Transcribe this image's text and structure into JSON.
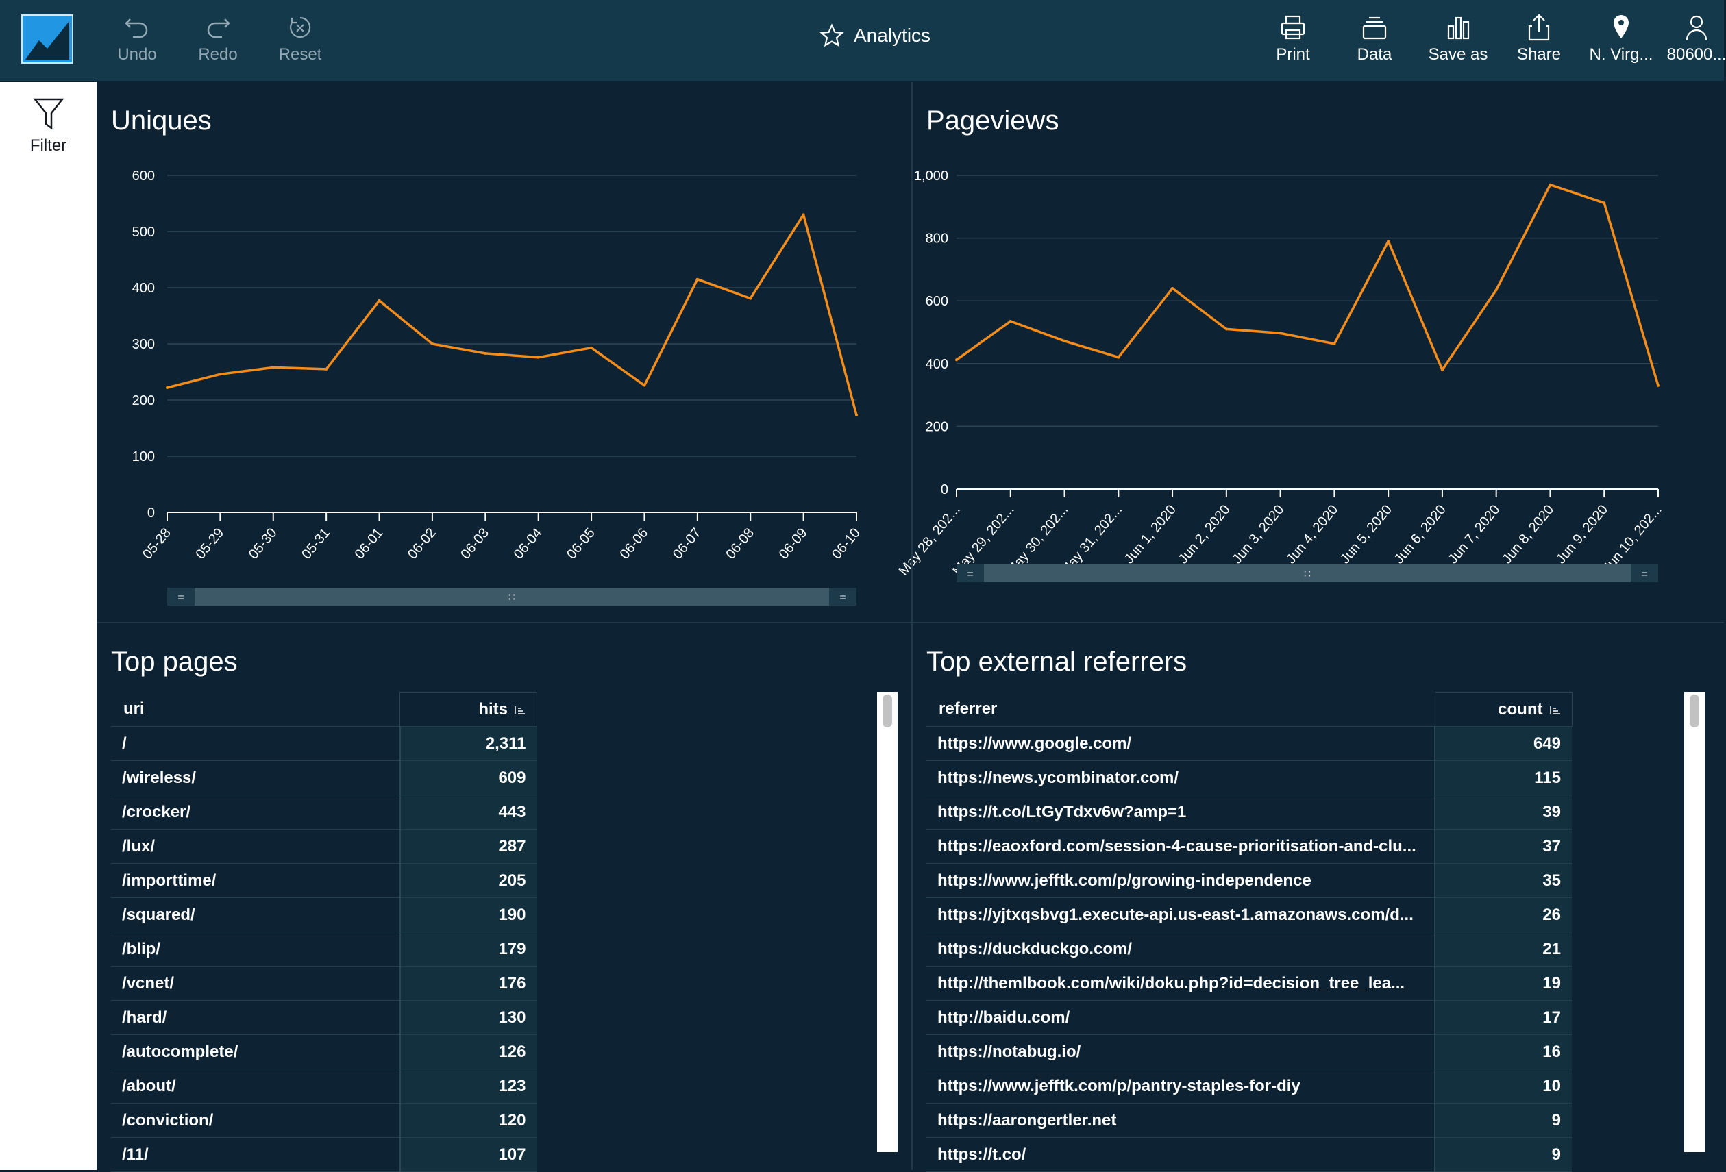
{
  "toolbar": {
    "undo": "Undo",
    "redo": "Redo",
    "reset": "Reset",
    "title": "Analytics",
    "print": "Print",
    "data": "Data",
    "save_as": "Save as",
    "share": "Share",
    "region": "N. Virg...",
    "account": "80600..."
  },
  "rail": {
    "filter": "Filter"
  },
  "colors": {
    "line": "#f48c1c",
    "bg": "#0d2333",
    "topbar": "#14394a",
    "logo": "#2196e3"
  },
  "panels": {
    "uniques": {
      "title": "Uniques"
    },
    "pageviews": {
      "title": "Pageviews"
    },
    "top_pages": {
      "title": "Top pages",
      "col_key": "uri",
      "col_val": "hits"
    },
    "top_referrers": {
      "title": "Top external referrers",
      "col_key": "referrer",
      "col_val": "count"
    }
  },
  "chart_data": [
    {
      "type": "line",
      "title": "Uniques",
      "categories": [
        "05-28",
        "05-29",
        "05-30",
        "05-31",
        "06-01",
        "06-02",
        "06-03",
        "06-04",
        "06-05",
        "06-06",
        "06-07",
        "06-08",
        "06-09",
        "06-10"
      ],
      "series": [
        {
          "values": [
            222,
            246,
            258,
            255,
            377,
            300,
            283,
            276,
            293,
            226,
            415,
            381,
            530,
            173
          ]
        }
      ],
      "ylim": [
        0,
        600
      ],
      "yticks": [
        "0",
        "100",
        "200",
        "300",
        "400",
        "500",
        "600"
      ],
      "grid": true
    },
    {
      "type": "line",
      "title": "Pageviews",
      "categories": [
        "May 28, 202...",
        "May 29, 202...",
        "May 30, 202...",
        "May 31, 202...",
        "Jun 1, 2020",
        "Jun 2, 2020",
        "Jun 3, 2020",
        "Jun 4, 2020",
        "Jun 5, 2020",
        "Jun 6, 2020",
        "Jun 7, 2020",
        "Jun 8, 2020",
        "Jun 9, 2020",
        "Jun 10, 202..."
      ],
      "series": [
        {
          "values": [
            412,
            535,
            472,
            420,
            640,
            510,
            497,
            463,
            790,
            380,
            635,
            970,
            912,
            330
          ]
        }
      ],
      "ylim": [
        0,
        1000
      ],
      "yticks": [
        "0",
        "200",
        "400",
        "600",
        "800",
        "1,000"
      ],
      "grid": true
    },
    {
      "type": "table",
      "title": "Top pages",
      "columns": [
        "uri",
        "hits"
      ],
      "rows": [
        [
          "/",
          "2,311"
        ],
        [
          "/wireless/",
          "609"
        ],
        [
          "/crocker/",
          "443"
        ],
        [
          "/lux/",
          "287"
        ],
        [
          "/importtime/",
          "205"
        ],
        [
          "/squared/",
          "190"
        ],
        [
          "/blip/",
          "179"
        ],
        [
          "/vcnet/",
          "176"
        ],
        [
          "/hard/",
          "130"
        ],
        [
          "/autocomplete/",
          "126"
        ],
        [
          "/about/",
          "123"
        ],
        [
          "/conviction/",
          "120"
        ],
        [
          "/11/",
          "107"
        ]
      ]
    },
    {
      "type": "table",
      "title": "Top external referrers",
      "columns": [
        "referrer",
        "count"
      ],
      "rows": [
        [
          "https://www.google.com/",
          "649"
        ],
        [
          "https://news.ycombinator.com/",
          "115"
        ],
        [
          "https://t.co/LtGyTdxv6w?amp=1",
          "39"
        ],
        [
          "https://eaoxford.com/session-4-cause-prioritisation-and-clu...",
          "37"
        ],
        [
          "https://www.jefftk.com/p/growing-independence",
          "35"
        ],
        [
          "https://yjtxqsbvg1.execute-api.us-east-1.amazonaws.com/d...",
          "26"
        ],
        [
          "https://duckduckgo.com/",
          "21"
        ],
        [
          "http://themlbook.com/wiki/doku.php?id=decision_tree_lea...",
          "19"
        ],
        [
          "http://baidu.com/",
          "17"
        ],
        [
          "https://notabug.io/",
          "16"
        ],
        [
          "https://www.jefftk.com/p/pantry-staples-for-diy",
          "10"
        ],
        [
          "https://aarongertler.net",
          "9"
        ],
        [
          "https://t.co/",
          "9"
        ]
      ]
    }
  ]
}
